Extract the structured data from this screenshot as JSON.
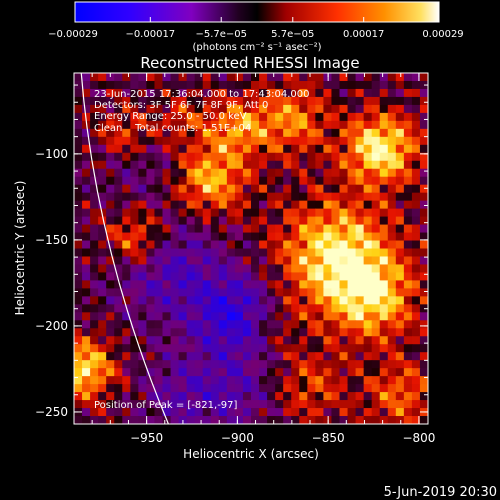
{
  "chart_data": {
    "type": "heatmap",
    "title": "Reconstructed RHESSI Image",
    "xlabel": "Heliocentric X (arcsec)",
    "ylabel": "Heliocentric Y (arcsec)",
    "xlim": [
      -990,
      -795
    ],
    "ylim": [
      -257,
      -53
    ],
    "xticks": [
      {
        "value": -950,
        "label": "−950"
      },
      {
        "value": -900,
        "label": "−900"
      },
      {
        "value": -850,
        "label": "−850"
      },
      {
        "value": -800,
        "label": "−800"
      }
    ],
    "yticks": [
      {
        "value": -100,
        "label": "−100"
      },
      {
        "value": -150,
        "label": "−150"
      },
      {
        "value": -200,
        "label": "−200"
      },
      {
        "value": -250,
        "label": "−250"
      }
    ],
    "colorbar": {
      "range": [
        -0.00029,
        0.00029
      ],
      "ticks": [
        {
          "value": -0.00029,
          "label": "−0.00029"
        },
        {
          "value": -0.00017,
          "label": "−0.00017"
        },
        {
          "value": -5.7e-05,
          "label": "−5.7e−05"
        },
        {
          "value": 5.7e-05,
          "label": "5.7e−05"
        },
        {
          "value": 0.00017,
          "label": "0.00017"
        },
        {
          "value": 0.00029,
          "label": "0.00029"
        }
      ],
      "unit_label": "(photons cm⁻² s⁻¹ asec⁻²)"
    },
    "annotations": [
      "23-Jun-2015 17:36:04.000 to 17:43:04.000",
      "Detectors: 3F 5F 6F 7F 8F 9F, Att 0",
      "Energy Range: 25.0 - 50.0 keV",
      "Clean    Total counts: 1.51E+04"
    ],
    "peak_text": "Position of Peak = [-821,-97]",
    "peak": [
      -821,
      -97
    ],
    "limb_points": [
      [
        -986,
        -53
      ],
      [
        -938,
        -257
      ]
    ],
    "timestamp": "5-Jun-2019 20:30"
  },
  "colors": {
    "background": "#000000",
    "foreground": "#ffffff",
    "colormap": [
      "#0000ff",
      "#4000ff",
      "#8000c0",
      "#000000",
      "#a00000",
      "#ff2000",
      "#ff8000",
      "#ffd000",
      "#ffffff"
    ]
  }
}
